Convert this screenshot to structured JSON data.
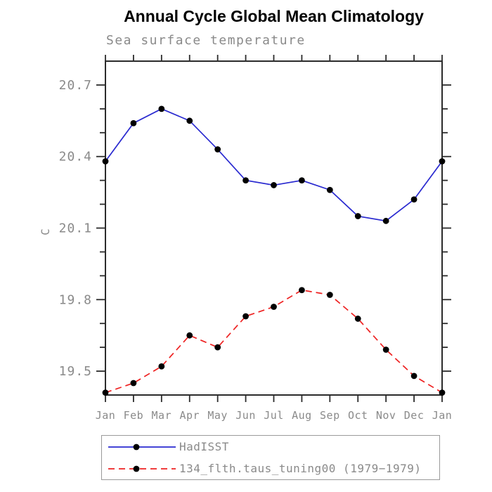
{
  "page": {
    "background": "#ffffff"
  },
  "colors": {
    "axis": "#2b2b2b",
    "tick_label": "#8a8a8a",
    "title": "#000000",
    "legend_border": "#9a9a9a",
    "series_blue": "#2a2ad0",
    "series_red": "#ee2222",
    "marker": "#000000"
  },
  "chart_data": {
    "type": "line",
    "title": "Annual Cycle Global Mean Climatology",
    "subtitle": "Sea surface temperature",
    "xlabel": "",
    "ylabel": "C",
    "x_ticklabels": [
      "Jan",
      "Feb",
      "Mar",
      "Apr",
      "May",
      "Jun",
      "Jul",
      "Aug",
      "Sep",
      "Oct",
      "Nov",
      "Dec",
      "Jan"
    ],
    "ylim": [
      19.4,
      20.8
    ],
    "y_major_ticks": [
      19.5,
      19.8,
      20.1,
      20.4,
      20.7
    ],
    "y_minor_step": 0.1,
    "grid": false,
    "legend_position": "bottom",
    "series": [
      {
        "name": "HadISST",
        "color": "#2a2ad0",
        "line_style": "solid",
        "marker": "circle",
        "marker_color": "#000000",
        "values": [
          20.38,
          20.54,
          20.6,
          20.55,
          20.43,
          20.3,
          20.28,
          20.3,
          20.26,
          20.15,
          20.13,
          20.22,
          20.38
        ]
      },
      {
        "name": "134_flth.taus_tuning00 (1979−1979)",
        "color": "#ee2222",
        "line_style": "dashed",
        "marker": "circle",
        "marker_color": "#000000",
        "values": [
          19.41,
          19.45,
          19.52,
          19.65,
          19.6,
          19.73,
          19.77,
          19.84,
          19.82,
          19.72,
          19.59,
          19.48,
          19.41
        ]
      }
    ]
  }
}
